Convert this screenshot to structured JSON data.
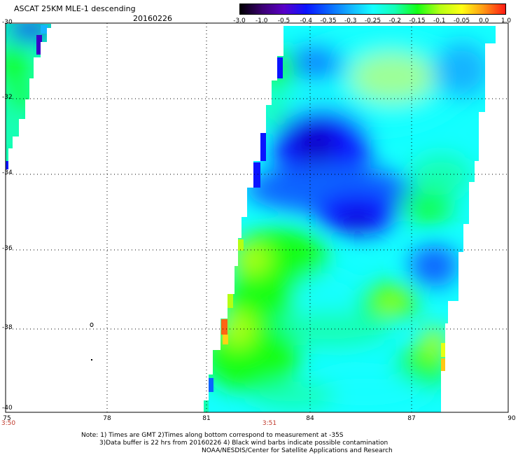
{
  "header": {
    "title": "ASCAT 25KM MLE-1 descending",
    "date": "20160226"
  },
  "colorbar": {
    "tick_labels": [
      "-3.0",
      "-1.0",
      "-0.5",
      "-0.4",
      "-0.35",
      "-0.3",
      "-0.25",
      "-0.2",
      "-0.15",
      "-0.1",
      "-0.05",
      "0.0",
      "1.0"
    ],
    "colors": [
      "#000000",
      "#3a0070",
      "#5a00c8",
      "#0a14ff",
      "#0a64ff",
      "#14b4ff",
      "#14ffff",
      "#14ffb4",
      "#14ff14",
      "#b4ff14",
      "#ffff14",
      "#ff9614",
      "#ff1414"
    ]
  },
  "axes": {
    "lat_labels": [
      "-30",
      "-32",
      "-34",
      "-36",
      "-38",
      "-40"
    ],
    "lon_labels": [
      "75",
      "78",
      "81",
      "84",
      "87",
      "90"
    ],
    "time_labels": [
      "3:50",
      "3:51"
    ]
  },
  "notes": [
    "Note: 1) Times are GMT 2)Times along bottom correspond to measurement at -35S",
    "3)Data buffer is 22 hrs from 20160226 4) Black wind barbs indicate possible contamination",
    "NOAA/NESDIS/Center for Satellite Applications and Research"
  ]
}
